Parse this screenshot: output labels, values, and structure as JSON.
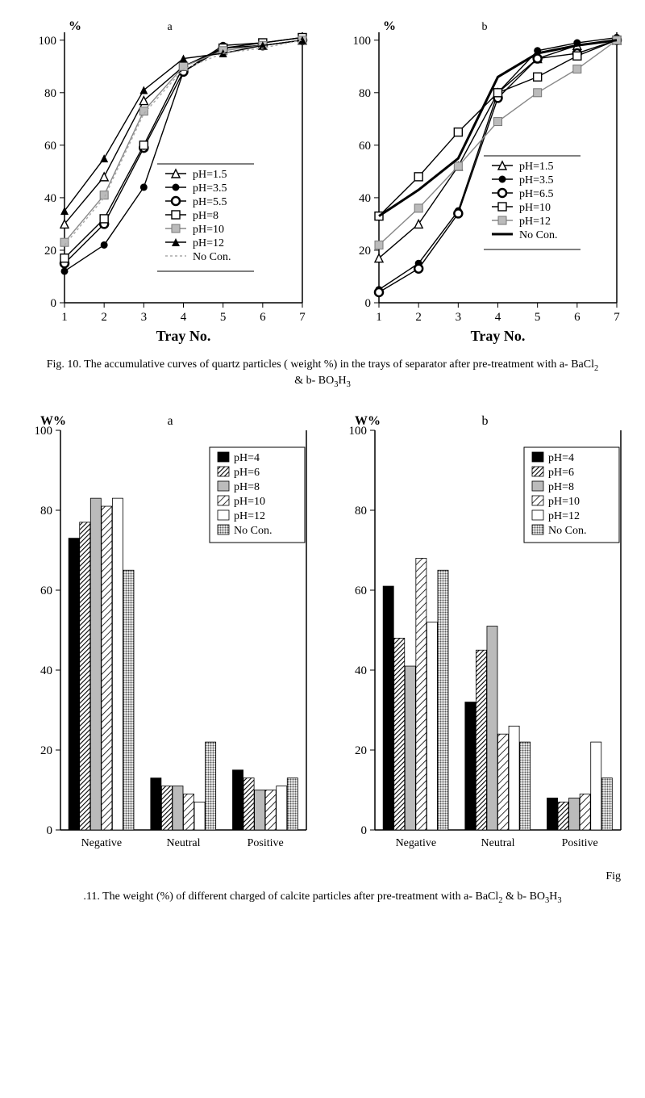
{
  "figure10": {
    "caption_line1": "Fig. 10. The accumulative curves of  quartz particles ( weight %) in the trays of separator after pre-treatment with a- BaCl",
    "caption_line2": "& b- BO",
    "sub1": "2",
    "sub2": "3",
    "sub3": "H",
    "sub4": "3",
    "xlabel": "Tray No.",
    "ylabel": "%",
    "ylim": [
      0,
      103
    ],
    "xlim": [
      1,
      7
    ],
    "yticks": [
      0,
      20,
      40,
      60,
      80,
      100
    ],
    "xticks": [
      1,
      2,
      3,
      4,
      5,
      6,
      7
    ],
    "panel_a": {
      "label": "a",
      "series": [
        {
          "name": "pH=1.5",
          "marker": "triangle-open",
          "color": "#000000",
          "dash": "",
          "data": [
            30,
            48,
            77,
            90,
            97,
            98,
            100
          ]
        },
        {
          "name": "pH=3.5",
          "marker": "circle-solid",
          "color": "#000000",
          "dash": "",
          "data": [
            12,
            22,
            44,
            88,
            98,
            99,
            101
          ]
        },
        {
          "name": "pH=5.5",
          "marker": "circle-open-bold",
          "color": "#000000",
          "dash": "",
          "data": [
            15,
            30,
            59,
            88,
            97,
            98,
            100
          ]
        },
        {
          "name": "pH=8",
          "marker": "square-open",
          "color": "#000000",
          "dash": "",
          "data": [
            17,
            32,
            60,
            90,
            97,
            99,
            101
          ]
        },
        {
          "name": "pH=10",
          "marker": "square-gray",
          "color": "#888888",
          "dash": "",
          "data": [
            23,
            41,
            73,
            90,
            96,
            98,
            100
          ]
        },
        {
          "name": "pH=12",
          "marker": "triangle-solid",
          "color": "#000000",
          "dash": "",
          "data": [
            35,
            55,
            81,
            93,
            95,
            98,
            100
          ]
        },
        {
          "name": "No Con.",
          "marker": "none",
          "color": "#aaaaaa",
          "dash": "3,3",
          "data": [
            22,
            40,
            72,
            89,
            95,
            97,
            100
          ]
        }
      ]
    },
    "panel_b": {
      "label": "b",
      "series": [
        {
          "name": "pH=1.5",
          "marker": "triangle-open",
          "color": "#000000",
          "dash": "",
          "data": [
            17,
            30,
            52,
            80,
            93,
            98,
            100
          ]
        },
        {
          "name": "pH=3.5",
          "marker": "circle-solid",
          "color": "#000000",
          "dash": "",
          "data": [
            5,
            15,
            35,
            80,
            96,
            99,
            101
          ]
        },
        {
          "name": "pH=6.5",
          "marker": "circle-open-bold",
          "color": "#000000",
          "dash": "",
          "data": [
            4,
            13,
            34,
            78,
            93,
            95,
            100
          ]
        },
        {
          "name": "pH=10",
          "marker": "square-open",
          "color": "#000000",
          "dash": "",
          "data": [
            33,
            48,
            65,
            80,
            86,
            94,
            100
          ]
        },
        {
          "name": "pH=12",
          "marker": "square-gray",
          "color": "#888888",
          "dash": "",
          "data": [
            22,
            36,
            52,
            69,
            80,
            89,
            100
          ]
        },
        {
          "name": "No Con.",
          "marker": "none",
          "color": "#000000",
          "dash": "",
          "width": 3,
          "data": [
            33,
            43,
            55,
            86,
            95,
            98,
            100
          ]
        }
      ]
    }
  },
  "figure11": {
    "caption": ".11. The weight (%) of different charged of calcite particles after pre-treatment with a- BaCl",
    "caption_tail": " & b- BO",
    "fig_prefix": "Fig",
    "ylabel": "W%",
    "ylim": [
      0,
      100
    ],
    "yticks": [
      0,
      20,
      40,
      60,
      80,
      100
    ],
    "groups": [
      "Negative",
      "Neutral",
      "Positive"
    ],
    "legend": [
      "pH=4",
      "pH=6",
      "pH=8",
      "pH=10",
      "pH=12",
      "No Con."
    ],
    "fills": [
      "solid",
      "hatch-dense",
      "gray-light",
      "hatch-diag",
      "white",
      "gray-dots"
    ],
    "panel_a": {
      "label": "a",
      "data": [
        [
          73,
          77,
          83,
          81,
          83,
          65
        ],
        [
          13,
          11,
          11,
          9,
          7,
          22
        ],
        [
          15,
          13,
          10,
          10,
          11,
          13
        ]
      ]
    },
    "panel_b": {
      "label": "b",
      "data": [
        [
          61,
          48,
          41,
          68,
          52,
          65
        ],
        [
          32,
          45,
          51,
          24,
          26,
          22
        ],
        [
          8,
          7,
          8,
          9,
          22,
          13
        ]
      ]
    }
  }
}
